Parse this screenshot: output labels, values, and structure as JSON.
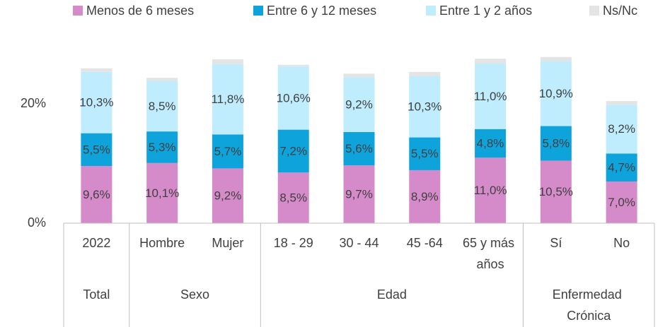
{
  "chart_data": {
    "type": "stacked_bar",
    "groups": [
      {
        "label": "Total",
        "categories": [
          "2022"
        ]
      },
      {
        "label": "Sexo",
        "categories": [
          "Hombre",
          "Mujer"
        ]
      },
      {
        "label": "Edad",
        "categories": [
          "18 - 29",
          "30 - 44",
          "45 -64",
          "65 y más años"
        ]
      },
      {
        "label": "Enfermedad Crónica",
        "categories": [
          "Sí",
          "No"
        ]
      }
    ],
    "series": [
      {
        "name": "Menos de 6 meses",
        "color": "#d58bc9",
        "values": [
          9.6,
          10.1,
          9.2,
          8.5,
          9.7,
          8.9,
          11.0,
          10.5,
          7.0
        ],
        "value_labels": [
          "9,6%",
          "10,1%",
          "9,2%",
          "8,5%",
          "9,7%",
          "8,9%",
          "11,0%",
          "10,5%",
          "7,0%"
        ]
      },
      {
        "name": "Entre 6 y 12 meses",
        "color": "#0fa3dc",
        "values": [
          5.5,
          5.3,
          5.7,
          7.2,
          5.6,
          5.5,
          4.8,
          5.8,
          4.7
        ],
        "value_labels": [
          "5,5%",
          "5,3%",
          "5,7%",
          "7,2%",
          "5,6%",
          "5,5%",
          "4,8%",
          "5,8%",
          "4,7%"
        ]
      },
      {
        "name": "Entre 1 y 2 años",
        "color": "#bfedfd",
        "values": [
          10.3,
          8.5,
          11.8,
          10.6,
          9.2,
          10.3,
          11.0,
          10.9,
          8.2
        ],
        "value_labels": [
          "10,3%",
          "8,5%",
          "11,8%",
          "10,6%",
          "9,2%",
          "10,3%",
          "11,0%",
          "10,9%",
          "8,2%"
        ]
      },
      {
        "name": "Ns/Nc",
        "color": "#e4e4e4",
        "values": [
          0.6,
          0.5,
          0.8,
          0.3,
          0.6,
          0.7,
          0.8,
          0.7,
          0.6
        ]
      }
    ],
    "ylim": [
      0,
      30
    ],
    "yticks": [
      {
        "value": 0,
        "label": "0%"
      },
      {
        "value": 20,
        "label": "20%"
      }
    ]
  }
}
